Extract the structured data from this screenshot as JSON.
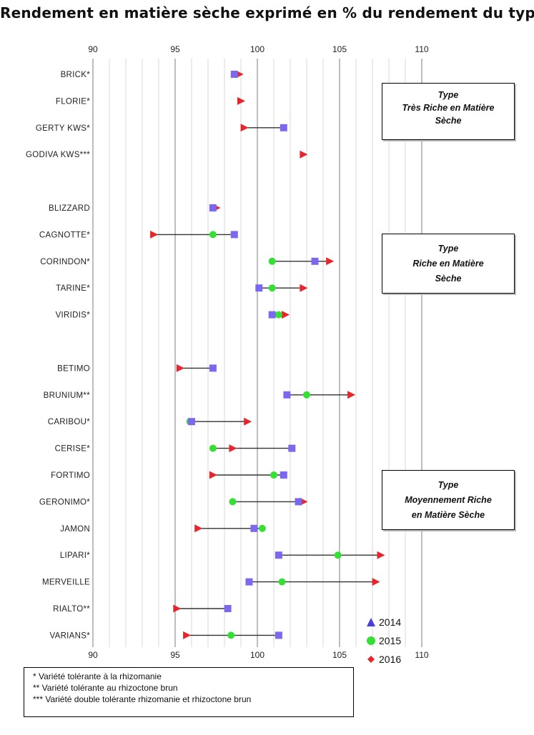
{
  "title": "Rendement en matière sèche exprimé en % du rendement du type",
  "chart_data": {
    "type": "scatter",
    "title": "Rendement en matière sèche exprimé en % du rendement du type",
    "xlim": [
      90,
      110
    ],
    "x_ticks": [
      "90",
      "95",
      "100",
      "105",
      "110"
    ],
    "minor_grid_step": 1,
    "grid": true,
    "legend_position": "bottom-right",
    "series": [
      {
        "name": "2014",
        "marker": "square",
        "color": "#7b68ee"
      },
      {
        "name": "2015",
        "marker": "circle",
        "color": "#33e033"
      },
      {
        "name": "2016",
        "marker": "triangle",
        "color": "#e8252a"
      }
    ],
    "categories": [
      {
        "name": "BRICK*",
        "v2014": 98.6,
        "v2015": null,
        "v2016": 98.9
      },
      {
        "name": "FLORIE*",
        "v2014": null,
        "v2015": null,
        "v2016": 99.0
      },
      {
        "name": "GERTY KWS*",
        "v2014": 101.6,
        "v2015": null,
        "v2016": 99.2
      },
      {
        "name": "GODIVA KWS***",
        "v2014": null,
        "v2015": null,
        "v2016": 102.8
      },
      {
        "name": "",
        "gap": true
      },
      {
        "name": "BLIZZARD",
        "v2014": 97.3,
        "v2015": null,
        "v2016": 97.5
      },
      {
        "name": "CAGNOTTE*",
        "v2014": 98.6,
        "v2015": 97.3,
        "v2016": 93.7
      },
      {
        "name": "CORINDON*",
        "v2014": 103.5,
        "v2015": 100.9,
        "v2016": 104.4
      },
      {
        "name": "TARINE*",
        "v2014": 100.1,
        "v2015": 100.9,
        "v2016": 102.8
      },
      {
        "name": "VIRIDIS*",
        "v2014": 100.9,
        "v2015": 101.3,
        "v2016": 101.7
      },
      {
        "name": "",
        "gap": true
      },
      {
        "name": "BETIMO",
        "v2014": 97.3,
        "v2015": null,
        "v2016": 95.3
      },
      {
        "name": "BRUNIUM**",
        "v2014": 101.8,
        "v2015": 103.0,
        "v2016": 105.7
      },
      {
        "name": "CARIBOU*",
        "v2014": 96.0,
        "v2015": 95.9,
        "v2016": 99.4
      },
      {
        "name": "CERISE*",
        "v2014": 102.1,
        "v2015": 97.3,
        "v2016": 98.5
      },
      {
        "name": "FORTIMO",
        "v2014": 101.6,
        "v2015": 101.0,
        "v2016": 97.3
      },
      {
        "name": "GERONIMO*",
        "v2014": 102.5,
        "v2015": 98.5,
        "v2016": 102.8
      },
      {
        "name": "JAMON",
        "v2014": 99.8,
        "v2015": 100.3,
        "v2016": 96.4
      },
      {
        "name": "LIPARI*",
        "v2014": 101.3,
        "v2015": 104.9,
        "v2016": 107.5
      },
      {
        "name": "MERVEILLE",
        "v2014": 99.5,
        "v2015": 101.5,
        "v2016": 107.2
      },
      {
        "name": "RIALTO**",
        "v2014": 98.2,
        "v2015": null,
        "v2016": 95.1
      },
      {
        "name": "VARIANS*",
        "v2014": 101.3,
        "v2015": 98.4,
        "v2016": 95.7
      }
    ]
  },
  "type_boxes": [
    {
      "lines": [
        "Type",
        "Très Riche en Matière",
        "Sèche"
      ]
    },
    {
      "lines": [
        "Type",
        "Riche en Matière",
        "Sèche"
      ]
    },
    {
      "lines": [
        "Type",
        "Moyennement Riche",
        "en Matière Sèche"
      ]
    }
  ],
  "legend": {
    "items": [
      "2014",
      "2015",
      "2016"
    ]
  },
  "notes": [
    "* Variété tolérante à la rhizomanie",
    "** Variété tolérante au rhizoctone brun",
    "*** Variété double tolérante rhizomanie et rhizoctone brun"
  ]
}
